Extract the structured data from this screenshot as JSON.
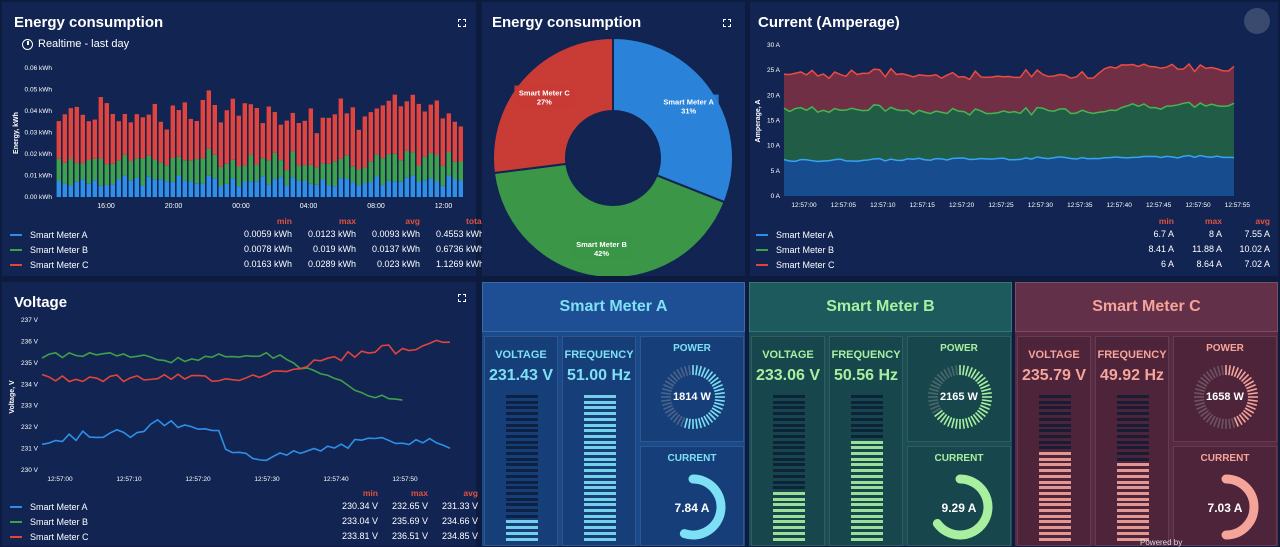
{
  "energy_bar": {
    "title": "Energy consumption",
    "subtitle": "Realtime - last day",
    "ylabel": "Energy, kWh",
    "yticks": [
      "0.06 kWh",
      "0.05 kWh",
      "0.04 kWh",
      "0.03 kWh",
      "0.02 kWh",
      "0.01 kWh",
      "0.00 kWh"
    ],
    "xticks": [
      "16:00",
      "20:00",
      "00:00",
      "04:00",
      "08:00",
      "12:00"
    ],
    "headers": [
      "min",
      "max",
      "avg",
      "total"
    ],
    "legend": [
      {
        "name": "Smart Meter A",
        "color": "#2f8fe8",
        "values": [
          "0.0059 kWh",
          "0.0123 kWh",
          "0.0093 kWh",
          "0.4553 kWh"
        ]
      },
      {
        "name": "Smart Meter B",
        "color": "#3ea04a",
        "values": [
          "0.0078 kWh",
          "0.019 kWh",
          "0.0137 kWh",
          "0.6736 kWh"
        ]
      },
      {
        "name": "Smart Meter C",
        "color": "#e0443c",
        "values": [
          "0.0163 kWh",
          "0.0289 kWh",
          "0.023 kWh",
          "1.1269 kWh"
        ]
      }
    ]
  },
  "energy_pie": {
    "title": "Energy consumption",
    "slices": [
      {
        "name": "Smart Meter A",
        "pct": "31%",
        "color": "#2a83d8"
      },
      {
        "name": "Smart Meter B",
        "pct": "42%",
        "color": "#3b9647"
      },
      {
        "name": "Smart Meter C",
        "pct": "27%",
        "color": "#c93b35"
      }
    ]
  },
  "current_chart": {
    "title": "Current (Amperage)",
    "ylabel": "Amperage, A",
    "yticks": [
      "30 A",
      "25 A",
      "20 A",
      "15 A",
      "10 A",
      "5 A",
      "0 A"
    ],
    "xticks": [
      "12:57:00",
      "12:57:05",
      "12:57:10",
      "12:57:15",
      "12:57:20",
      "12:57:25",
      "12:57:30",
      "12:57:35",
      "12:57:40",
      "12:57:45",
      "12:57:50",
      "12:57:55"
    ],
    "headers": [
      "min",
      "max",
      "avg"
    ],
    "legend": [
      {
        "name": "Smart Meter A",
        "color": "#2f8fe8",
        "values": [
          "6.7 A",
          "8 A",
          "7.55 A"
        ]
      },
      {
        "name": "Smart Meter B",
        "color": "#3ea04a",
        "values": [
          "8.41 A",
          "11.88 A",
          "10.02 A"
        ]
      },
      {
        "name": "Smart Meter C",
        "color": "#e0443c",
        "values": [
          "6 A",
          "8.64 A",
          "7.02 A"
        ]
      }
    ]
  },
  "voltage_chart": {
    "title": "Voltage",
    "ylabel": "Voltage, V",
    "yticks": [
      "237 V",
      "236 V",
      "235 V",
      "234 V",
      "233 V",
      "232 V",
      "231 V",
      "230 V"
    ],
    "xticks": [
      "12:57:00",
      "12:57:10",
      "12:57:20",
      "12:57:30",
      "12:57:40",
      "12:57:50"
    ],
    "headers": [
      "min",
      "max",
      "avg"
    ],
    "legend": [
      {
        "name": "Smart Meter A",
        "color": "#2f8fe8",
        "values": [
          "230.34 V",
          "232.65 V",
          "231.33 V"
        ]
      },
      {
        "name": "Smart Meter B",
        "color": "#3ea04a",
        "values": [
          "233.04 V",
          "235.69 V",
          "234.66 V"
        ]
      },
      {
        "name": "Smart Meter C",
        "color": "#e0443c",
        "values": [
          "233.81 V",
          "236.51 V",
          "234.85 V"
        ]
      }
    ]
  },
  "meters": [
    {
      "name": "Smart Meter A",
      "voltage_label": "VOLTAGE",
      "voltage": "231.43 V",
      "freq_label": "FREQUENCY",
      "frequency": "51.00 Hz",
      "power_label": "POWER",
      "power": "1814 W",
      "current_label": "CURRENT",
      "current": "7.84 A",
      "voltage_fill": 0.15,
      "freq_fill": 1.0,
      "power_fill": 0.55,
      "current_fill": 0.55,
      "accent": "#7ee0f5",
      "bg": "#1a4a8a",
      "card": "#163f7a",
      "head": "#1e4f94"
    },
    {
      "name": "Smart Meter B",
      "voltage_label": "VOLTAGE",
      "voltage": "233.06 V",
      "freq_label": "FREQUENCY",
      "frequency": "50.56 Hz",
      "power_label": "POWER",
      "power": "2165 W",
      "current_label": "CURRENT",
      "current": "9.29 A",
      "voltage_fill": 0.35,
      "freq_fill": 0.7,
      "power_fill": 0.65,
      "current_fill": 0.65,
      "accent": "#a8f0a0",
      "bg": "#1a4f55",
      "card": "#17464c",
      "head": "#1d5a5e"
    },
    {
      "name": "Smart Meter C",
      "voltage_label": "VOLTAGE",
      "voltage": "235.79 V",
      "freq_label": "FREQUENCY",
      "frequency": "49.92 Hz",
      "power_label": "POWER",
      "power": "1658 W",
      "current_label": "CURRENT",
      "current": "7.03 A",
      "voltage_fill": 0.6,
      "freq_fill": 0.55,
      "power_fill": 0.45,
      "current_fill": 0.5,
      "accent": "#f5a49a",
      "bg": "#5a2a42",
      "card": "#4e243b",
      "head": "#63304a"
    }
  ],
  "footer": {
    "text": "Powered by"
  }
}
